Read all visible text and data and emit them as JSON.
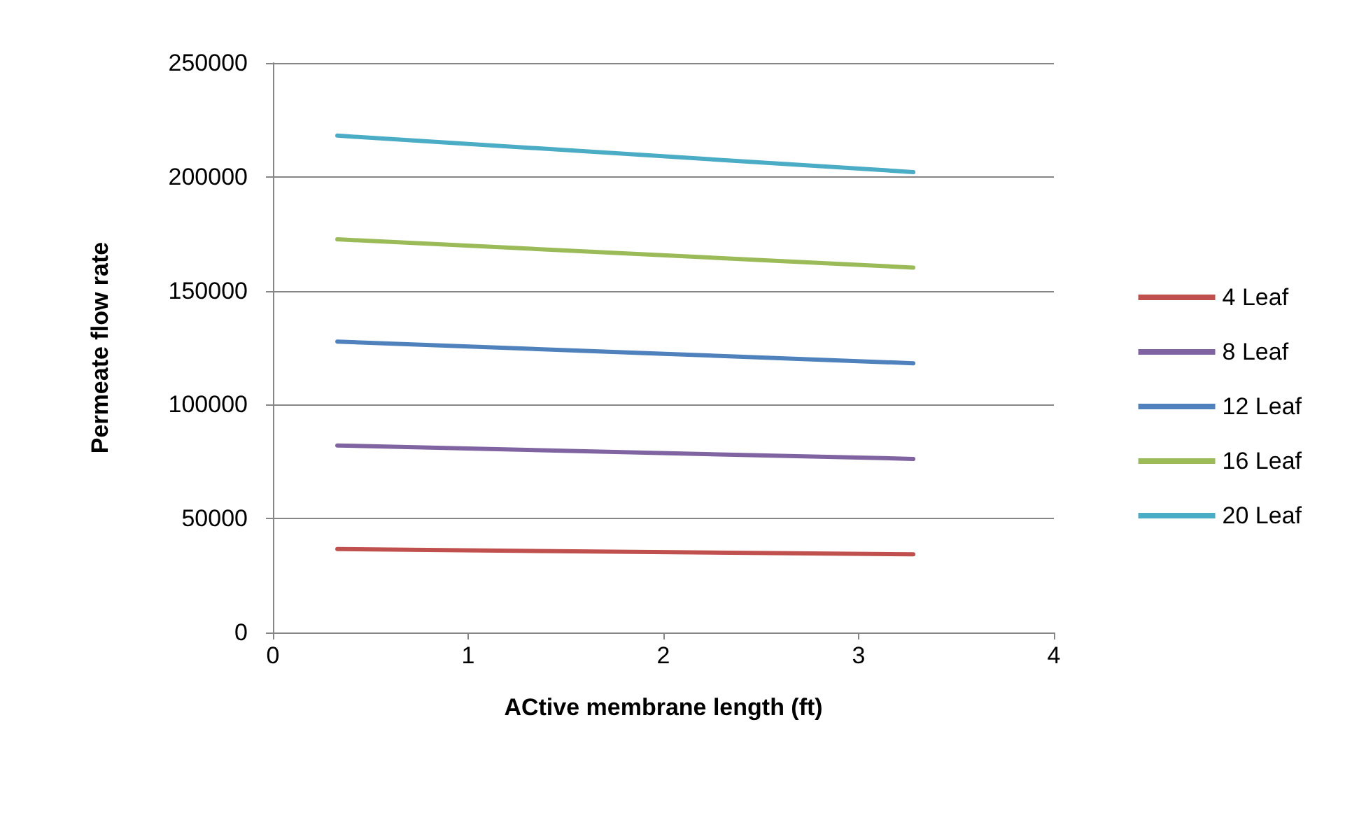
{
  "chart_data": {
    "type": "line",
    "xlabel": "ACtive membrane length (ft)",
    "ylabel": "Permeate flow rate",
    "x": [
      0.33,
      3.28
    ],
    "series": [
      {
        "name": "4 Leaf",
        "color": "#c0504d",
        "values": [
          36600,
          34300
        ]
      },
      {
        "name": "8 Leaf",
        "color": "#8064a2",
        "values": [
          82100,
          76200
        ]
      },
      {
        "name": "12 Leaf",
        "color": "#4f81bd",
        "values": [
          127700,
          118200
        ]
      },
      {
        "name": "16 Leaf",
        "color": "#9bbb59",
        "values": [
          172600,
          160200
        ]
      },
      {
        "name": "20 Leaf",
        "color": "#4bacc6",
        "values": [
          218100,
          202100
        ]
      }
    ],
    "xlim": [
      0,
      4
    ],
    "xticks": [
      0,
      1,
      2,
      3,
      4
    ],
    "ylim": [
      0,
      250000
    ],
    "yticks": [
      0,
      50000,
      100000,
      150000,
      200000,
      250000
    ],
    "grid": "y",
    "legend": "right",
    "marker": "none",
    "line_style": "solid"
  }
}
